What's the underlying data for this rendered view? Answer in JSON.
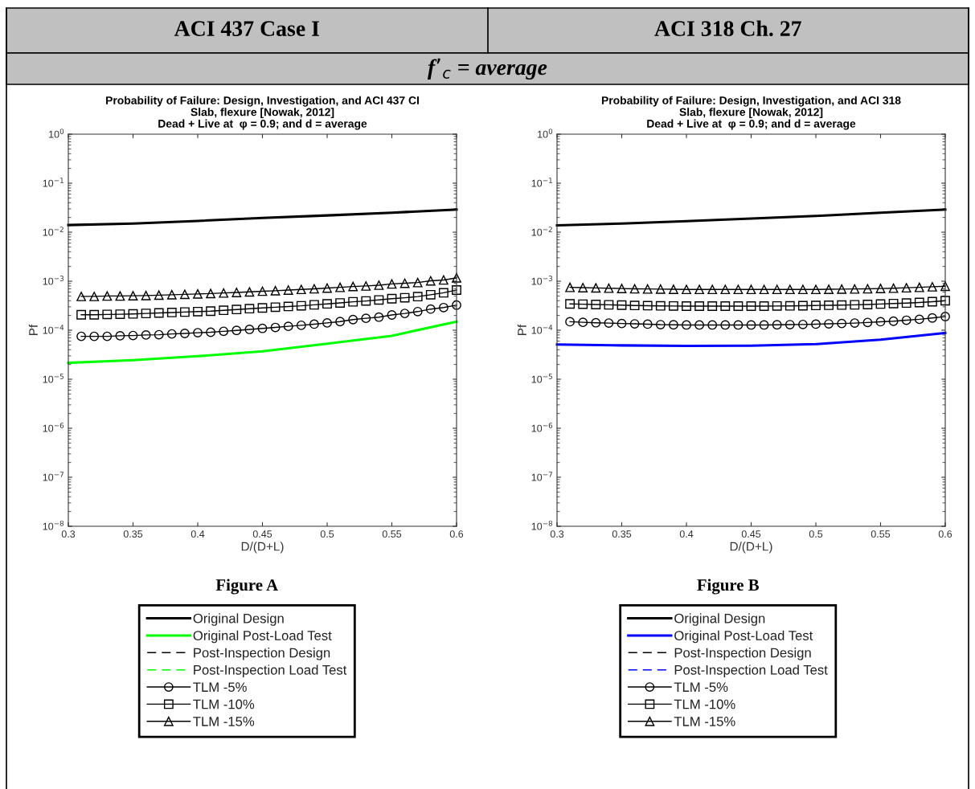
{
  "chart_data": [
    {
      "type": "line",
      "title": "Probability of Failure: Design, Investigation, and ACI 437 CI\nSlab, flexure [Nowak, 2012]\nDead + Live at  φ = 0.9; and d = average",
      "xlabel": "D/(D+L)",
      "ylabel": "Pf",
      "log": "y",
      "xlim": [
        0.3,
        0.6
      ],
      "xticks": [
        0.3,
        0.35,
        0.4,
        0.45,
        0.5,
        0.55,
        0.6
      ],
      "ylim": [
        1e-08,
        1
      ],
      "yticks": [
        {
          "value": 1e-08,
          "label": "10$^{−8}$"
        },
        {
          "value": 1e-07,
          "label": "10$^{−7}$"
        },
        {
          "value": 1e-06,
          "label": "10$^{−6}$"
        },
        {
          "value": 1e-05,
          "label": "10$^{−5}$"
        },
        {
          "value": 0.0001,
          "label": "10$^{−4}$"
        },
        {
          "value": 0.001,
          "label": "10$^{−3}$"
        },
        {
          "value": 0.01,
          "label": "10$^{−2}$"
        },
        {
          "value": 0.1,
          "label": "10$^{−1}$"
        },
        {
          "value": 1,
          "label": "10$^{0}$"
        }
      ],
      "grid": false,
      "legend": "bottom",
      "annotations": [
        "ACI 437 Case I",
        "Figure A",
        "f’$_{c}$ = average"
      ],
      "series": [
        {
          "name": "Original Design",
          "color": "#000000",
          "line_style": "solid",
          "marker": "none",
          "x": [
            0.3,
            0.35,
            0.4,
            0.45,
            0.5,
            0.55,
            0.6
          ],
          "values": [
            0.014,
            0.015,
            0.017,
            0.0195,
            0.022,
            0.025,
            0.029
          ]
        },
        {
          "name": "Original Post-Load Test",
          "color": "#00ff00",
          "line_style": "solid",
          "marker": "none",
          "x": [
            0.3,
            0.35,
            0.4,
            0.45,
            0.5,
            0.55,
            0.6
          ],
          "values": [
            2.16e-05,
            2.45e-05,
            2.95e-05,
            3.7e-05,
            5.3e-05,
            7.7e-05,
            0.00015
          ]
        },
        {
          "name": "Post-Inspection Design",
          "color": "#000000",
          "line_style": "dashed",
          "marker": "none"
        },
        {
          "name": "Post-Inspection Load Test",
          "color": "#00ff00",
          "line_style": "dashed",
          "marker": "none"
        },
        {
          "name": "TLM -5%",
          "color": "#000000",
          "line_style": "solid",
          "marker": "circle",
          "x": [
            0.31,
            0.32,
            0.33,
            0.34,
            0.35,
            0.36,
            0.37,
            0.38,
            0.39,
            0.4,
            0.41,
            0.42,
            0.43,
            0.44,
            0.45,
            0.46,
            0.47,
            0.48,
            0.49,
            0.5,
            0.51,
            0.52,
            0.53,
            0.54,
            0.55,
            0.56,
            0.57,
            0.58,
            0.59,
            0.6
          ],
          "values": [
            7.5e-05,
            7.5e-05,
            7.5e-05,
            7.7e-05,
            7.8e-05,
            8e-05,
            8.1e-05,
            8.4e-05,
            8.6e-05,
            8.9e-05,
            9.1e-05,
            9.5e-05,
            9.9e-05,
            0.000104,
            0.000109,
            0.000114,
            0.00012,
            0.000126,
            0.000133,
            0.000141,
            0.00015,
            0.000165,
            0.000175,
            0.000185,
            0.000205,
            0.00022,
            0.00024,
            0.00027,
            0.00029,
            0.000325
          ]
        },
        {
          "name": "TLM -10%",
          "color": "#000000",
          "line_style": "solid",
          "marker": "square",
          "x": [
            0.31,
            0.32,
            0.33,
            0.34,
            0.35,
            0.36,
            0.37,
            0.38,
            0.39,
            0.4,
            0.41,
            0.42,
            0.43,
            0.44,
            0.45,
            0.46,
            0.47,
            0.48,
            0.49,
            0.5,
            0.51,
            0.52,
            0.53,
            0.54,
            0.55,
            0.56,
            0.57,
            0.58,
            0.59,
            0.6
          ],
          "values": [
            0.000207,
            0.000207,
            0.00021,
            0.000212,
            0.000215,
            0.00022,
            0.000225,
            0.00023,
            0.000235,
            0.00024,
            0.000245,
            0.000255,
            0.000265,
            0.000275,
            0.000285,
            0.000295,
            0.000305,
            0.000315,
            0.00033,
            0.000345,
            0.00036,
            0.00038,
            0.000395,
            0.000415,
            0.00044,
            0.00046,
            0.000485,
            0.00053,
            0.00058,
            0.00066
          ]
        },
        {
          "name": "TLM -15%",
          "color": "#000000",
          "line_style": "solid",
          "marker": "triangle",
          "x": [
            0.31,
            0.32,
            0.33,
            0.34,
            0.35,
            0.36,
            0.37,
            0.38,
            0.39,
            0.4,
            0.41,
            0.42,
            0.43,
            0.44,
            0.45,
            0.46,
            0.47,
            0.48,
            0.49,
            0.5,
            0.51,
            0.52,
            0.53,
            0.54,
            0.55,
            0.56,
            0.57,
            0.58,
            0.59,
            0.6
          ],
          "values": [
            0.00049,
            0.00049,
            0.0005,
            0.0005,
            0.000505,
            0.00051,
            0.00052,
            0.00053,
            0.00054,
            0.00055,
            0.00056,
            0.000575,
            0.00059,
            0.000605,
            0.000625,
            0.00064,
            0.00066,
            0.00068,
            0.0007,
            0.000725,
            0.00075,
            0.00078,
            0.0008,
            0.00083,
            0.00088,
            0.00091,
            0.00094,
            0.00102,
            0.00106,
            0.00117
          ]
        }
      ]
    },
    {
      "type": "line",
      "title": "Probability of Failure: Design, Investigation, and ACI 318\nSlab, flexure [Nowak, 2012]\nDead + Live at  φ = 0.9; and d = average",
      "xlabel": "D/(D+L)",
      "ylabel": "Pf",
      "log": "y",
      "xlim": [
        0.3,
        0.6
      ],
      "xticks": [
        0.3,
        0.35,
        0.4,
        0.45,
        0.5,
        0.55,
        0.6
      ],
      "ylim": [
        1e-08,
        1
      ],
      "yticks": [
        {
          "value": 1e-08,
          "label": "10$^{−8}$"
        },
        {
          "value": 1e-07,
          "label": "10$^{−7}$"
        },
        {
          "value": 1e-06,
          "label": "10$^{−6}$"
        },
        {
          "value": 1e-05,
          "label": "10$^{−5}$"
        },
        {
          "value": 0.0001,
          "label": "10$^{−4}$"
        },
        {
          "value": 0.001,
          "label": "10$^{−3}$"
        },
        {
          "value": 0.01,
          "label": "10$^{−2}$"
        },
        {
          "value": 0.1,
          "label": "10$^{−1}$"
        },
        {
          "value": 1,
          "label": "10$^{0}$"
        }
      ],
      "grid": false,
      "legend": "bottom",
      "annotations": [
        "ACI 318 Ch. 27",
        "Figure B"
      ],
      "series": [
        {
          "name": "Original Design",
          "color": "#000000",
          "line_style": "solid",
          "marker": "none",
          "x": [
            0.3,
            0.35,
            0.4,
            0.45,
            0.5,
            0.55,
            0.6
          ],
          "values": [
            0.0138,
            0.015,
            0.0168,
            0.019,
            0.0215,
            0.025,
            0.029
          ]
        },
        {
          "name": "Original Post-Load Test",
          "color": "#0000ff",
          "line_style": "solid",
          "marker": "none",
          "x": [
            0.3,
            0.35,
            0.4,
            0.45,
            0.5,
            0.55,
            0.6
          ],
          "values": [
            5.1e-05,
            4.9e-05,
            4.8e-05,
            4.85e-05,
            5.2e-05,
            6.4e-05,
            8.8e-05
          ]
        },
        {
          "name": "Post-Inspection Design",
          "color": "#000000",
          "line_style": "dashed",
          "marker": "none"
        },
        {
          "name": "Post-Inspection Load Test",
          "color": "#0000ff",
          "line_style": "dashed",
          "marker": "none"
        },
        {
          "name": "TLM -5%",
          "color": "#000000",
          "line_style": "solid",
          "marker": "circle",
          "x": [
            0.31,
            0.32,
            0.33,
            0.34,
            0.35,
            0.36,
            0.37,
            0.38,
            0.39,
            0.4,
            0.41,
            0.42,
            0.43,
            0.44,
            0.45,
            0.46,
            0.47,
            0.48,
            0.49,
            0.5,
            0.51,
            0.52,
            0.53,
            0.54,
            0.55,
            0.56,
            0.57,
            0.58,
            0.59,
            0.6
          ],
          "values": [
            0.000149,
            0.000145,
            0.000142,
            0.00014,
            0.000137,
            0.000135,
            0.000133,
            0.00013,
            0.000129,
            0.000128,
            0.000128,
            0.000128,
            0.000128,
            0.000128,
            0.000128,
            0.000128,
            0.000129,
            0.00013,
            0.000131,
            0.000133,
            0.000135,
            0.000137,
            0.00014,
            0.000144,
            0.000149,
            0.000153,
            0.00016,
            0.000167,
            0.000178,
            0.00019
          ]
        },
        {
          "name": "TLM -10%",
          "color": "#000000",
          "line_style": "solid",
          "marker": "square",
          "x": [
            0.31,
            0.32,
            0.33,
            0.34,
            0.35,
            0.36,
            0.37,
            0.38,
            0.39,
            0.4,
            0.41,
            0.42,
            0.43,
            0.44,
            0.45,
            0.46,
            0.47,
            0.48,
            0.49,
            0.5,
            0.51,
            0.52,
            0.53,
            0.54,
            0.55,
            0.56,
            0.57,
            0.58,
            0.59,
            0.6
          ],
          "values": [
            0.000344,
            0.00034,
            0.000335,
            0.00033,
            0.000325,
            0.00032,
            0.000317,
            0.000314,
            0.000312,
            0.00031,
            0.00031,
            0.00031,
            0.00031,
            0.00031,
            0.00031,
            0.00031,
            0.000312,
            0.000314,
            0.000316,
            0.00032,
            0.000323,
            0.000326,
            0.00033,
            0.000335,
            0.000342,
            0.00035,
            0.000358,
            0.000368,
            0.000382,
            0.0004
          ]
        },
        {
          "name": "TLM -15%",
          "color": "#000000",
          "line_style": "solid",
          "marker": "triangle",
          "x": [
            0.31,
            0.32,
            0.33,
            0.34,
            0.35,
            0.36,
            0.37,
            0.38,
            0.39,
            0.4,
            0.41,
            0.42,
            0.43,
            0.44,
            0.45,
            0.46,
            0.47,
            0.48,
            0.49,
            0.5,
            0.51,
            0.52,
            0.53,
            0.54,
            0.55,
            0.56,
            0.57,
            0.58,
            0.59,
            0.6
          ],
          "values": [
            0.00075,
            0.00074,
            0.00073,
            0.00072,
            0.00071,
            0.0007,
            0.000695,
            0.00069,
            0.000685,
            0.00068,
            0.00068,
            0.00068,
            0.00068,
            0.00068,
            0.00068,
            0.00068,
            0.00068,
            0.00068,
            0.00068,
            0.00068,
            0.000685,
            0.00069,
            0.000695,
            0.0007,
            0.00071,
            0.00072,
            0.000735,
            0.00075,
            0.00077,
            0.00079
          ]
        }
      ]
    }
  ]
}
